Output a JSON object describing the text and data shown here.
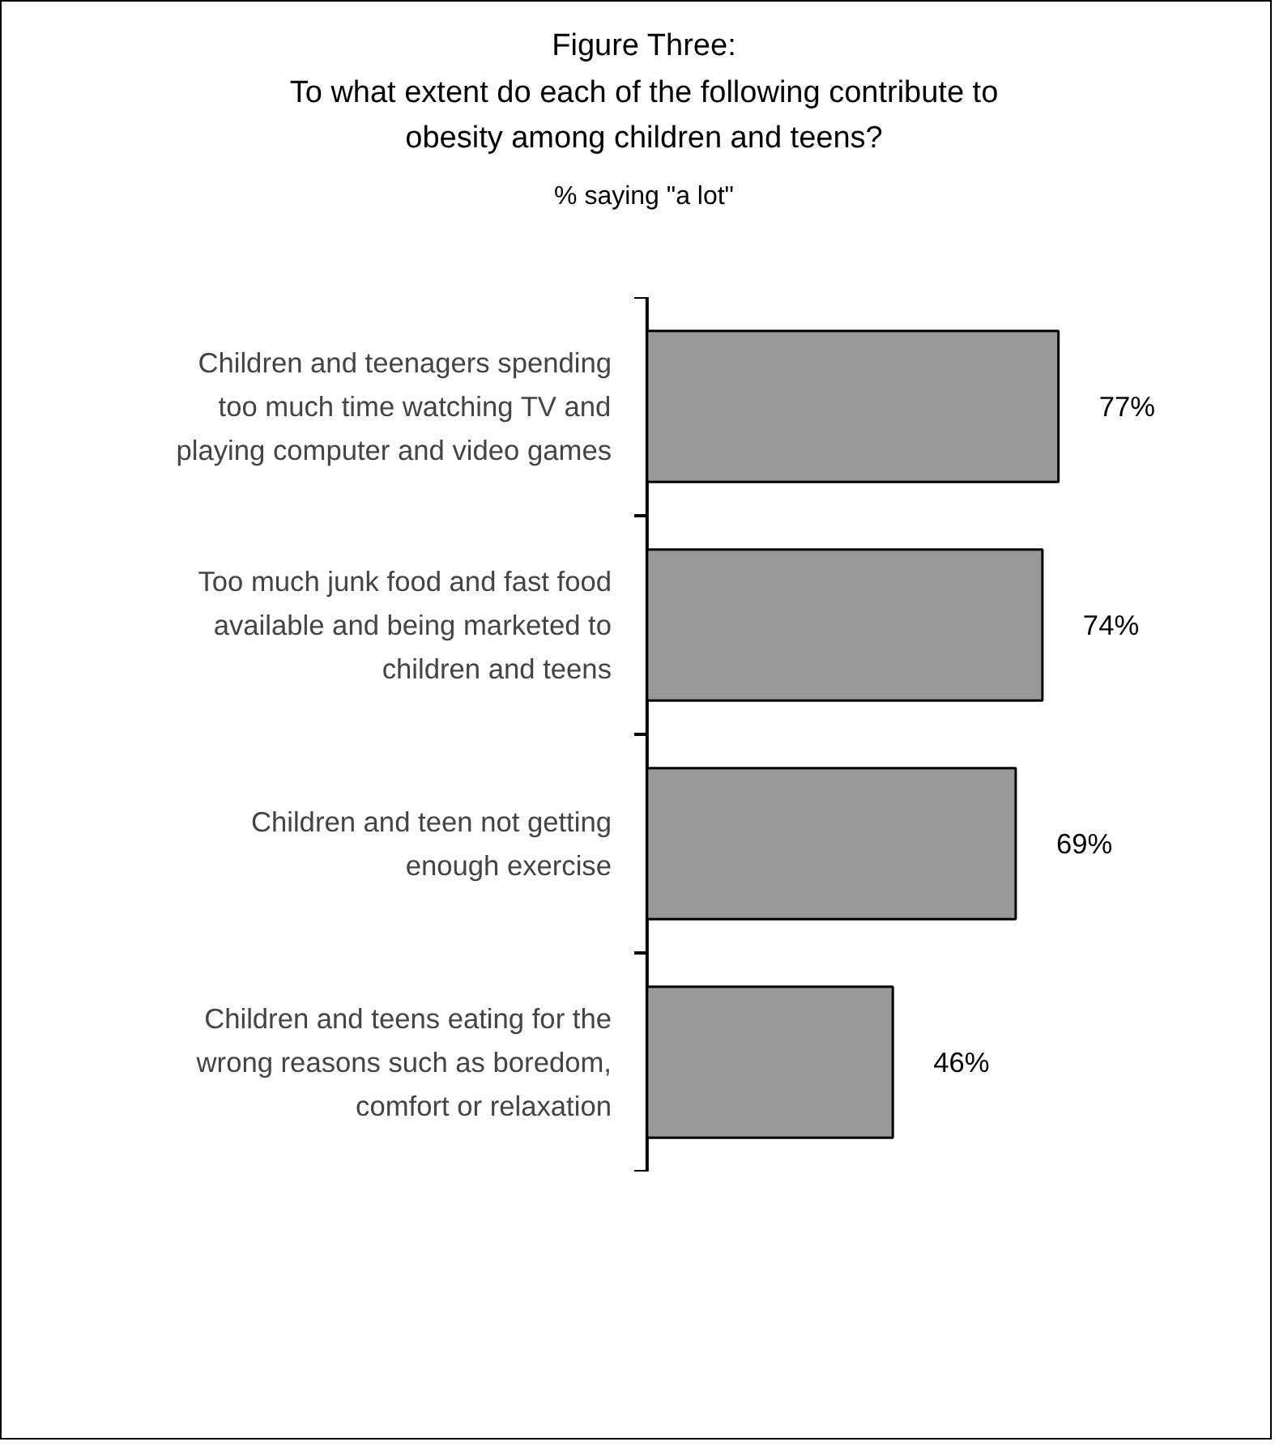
{
  "chart_data": {
    "type": "bar",
    "orientation": "horizontal",
    "title": "Figure Three:\nTo what extent do each of the following contribute to\nobesity among children and teens?",
    "subtitle": "% saying \"a lot\"",
    "categories": [
      "Children and teenagers spending\ntoo much time watching TV and\nplaying computer and video games",
      "Too much junk food and fast food\navailable and being marketed to\nchildren and teens",
      "Children and teen not getting\nenough exercise",
      "Children and teens eating for the\nwrong reasons such as boredom,\ncomfort or relaxation"
    ],
    "values": [
      77,
      74,
      69,
      46
    ],
    "value_labels": [
      "77%",
      "74%",
      "69%",
      "46%"
    ],
    "color": "#999999"
  }
}
